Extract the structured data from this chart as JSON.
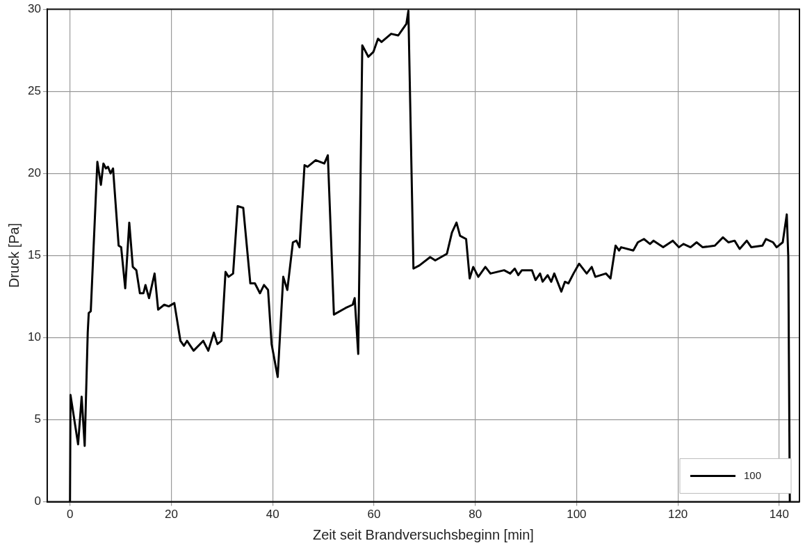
{
  "chart_data": {
    "type": "line",
    "xlabel": "Zeit seit Brandversuchsbeginn [min]",
    "ylabel": "Druck [Pa]",
    "xlim": [
      -4.5,
      144
    ],
    "xticks": [
      0,
      20,
      40,
      60,
      80,
      100,
      120,
      140
    ],
    "ylim": [
      0,
      30
    ],
    "yticks": [
      0,
      5,
      10,
      15,
      20,
      25,
      30
    ],
    "grid": true,
    "legend": "bottom right",
    "marker": "none",
    "line_style": "solid",
    "series": [
      {
        "name": "100",
        "color": "#000000",
        "x": [
          0,
          0.1,
          1.6,
          2.3,
          2.9,
          3.5,
          3.7,
          4.1,
          5.4,
          6.1,
          6.6,
          7.1,
          7.5,
          8.0,
          8.5,
          9.6,
          10.1,
          10.9,
          11.7,
          12.4,
          13.1,
          13.8,
          14.5,
          14.9,
          15.6,
          16.7,
          17.4,
          18.6,
          19.5,
          20.6,
          21.8,
          22.5,
          23.1,
          24.4,
          26.3,
          27.3,
          28.4,
          29.1,
          29.9,
          30.7,
          31.3,
          32.2,
          33.1,
          34.2,
          35.6,
          36.5,
          37.5,
          38.3,
          39.1,
          39.8,
          41.0,
          42.1,
          42.9,
          44.0,
          44.7,
          45.3,
          46.3,
          46.9,
          48.5,
          50.2,
          50.9,
          52.1,
          54.4,
          55.8,
          56.2,
          56.9,
          57.7,
          58.9,
          59.9,
          60.8,
          61.5,
          63.4,
          64.8,
          65.7,
          66.4,
          66.8,
          67.8,
          69.0,
          71.1,
          72.1,
          74.4,
          75.4,
          76.3,
          77.0,
          78.2,
          78.9,
          79.6,
          80.6,
          82.0,
          83.0,
          85.7,
          86.9,
          87.8,
          88.5,
          89.2,
          91.2,
          91.9,
          92.8,
          93.3,
          94.3,
          95.0,
          95.6,
          97.0,
          97.7,
          98.4,
          99.4,
          100.5,
          102.0,
          103.0,
          103.7,
          105.8,
          106.7,
          107.7,
          108.4,
          108.8,
          111.2,
          112.1,
          113.3,
          114.5,
          115.2,
          117.1,
          119.0,
          120.2,
          121.1,
          122.5,
          123.7,
          124.9,
          127.3,
          128.9,
          130.0,
          131.2,
          132.2,
          133.6,
          134.5,
          136.7,
          137.4,
          138.8,
          139.5,
          140.7,
          141.5,
          141.8,
          142.1
        ],
        "values": [
          0,
          6.5,
          3.5,
          6.4,
          3.4,
          10.3,
          11.5,
          11.6,
          20.7,
          19.3,
          20.6,
          20.3,
          20.4,
          20.0,
          20.3,
          15.6,
          15.5,
          13.0,
          17.0,
          14.3,
          14.1,
          12.7,
          12.7,
          13.2,
          12.4,
          13.9,
          11.7,
          12.0,
          11.9,
          12.1,
          9.8,
          9.5,
          9.8,
          9.2,
          9.8,
          9.2,
          10.3,
          9.6,
          9.8,
          14.0,
          13.7,
          13.9,
          18.0,
          17.9,
          13.3,
          13.3,
          12.7,
          13.2,
          12.9,
          9.6,
          7.6,
          13.7,
          12.9,
          15.8,
          15.9,
          15.5,
          20.5,
          20.4,
          20.8,
          20.6,
          21.1,
          11.4,
          11.8,
          12.0,
          12.4,
          9.0,
          27.8,
          27.1,
          27.4,
          28.2,
          28.0,
          28.5,
          28.4,
          28.8,
          29.1,
          29.9,
          14.2,
          14.4,
          14.9,
          14.7,
          15.1,
          16.4,
          17.0,
          16.2,
          16.0,
          13.6,
          14.3,
          13.7,
          14.3,
          13.9,
          14.1,
          13.9,
          14.2,
          13.8,
          14.1,
          14.1,
          13.5,
          13.9,
          13.4,
          13.8,
          13.4,
          13.9,
          12.8,
          13.4,
          13.3,
          13.9,
          14.5,
          13.9,
          14.3,
          13.7,
          13.9,
          13.6,
          15.6,
          15.3,
          15.5,
          15.3,
          15.8,
          16.0,
          15.7,
          15.9,
          15.5,
          15.9,
          15.5,
          15.7,
          15.5,
          15.8,
          15.5,
          15.6,
          16.1,
          15.8,
          15.9,
          15.4,
          15.9,
          15.5,
          15.6,
          16.0,
          15.8,
          15.5,
          15.8,
          17.5,
          14.9,
          0
        ]
      }
    ]
  }
}
